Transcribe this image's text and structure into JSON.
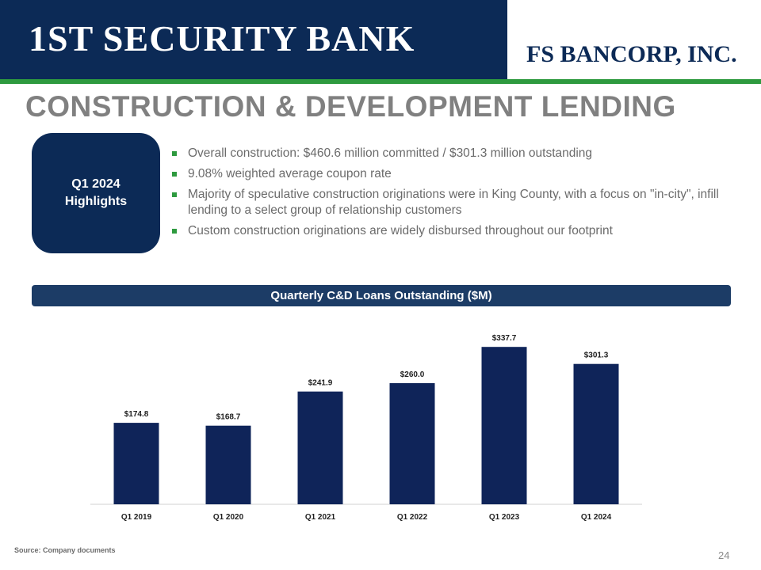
{
  "header": {
    "bank_logo_text": "1ST SECURITY BANK",
    "parent_logo_text": "FS BANCORP, INC."
  },
  "title": "CONSTRUCTION &  DEVELOPMENT LENDING",
  "highlights": {
    "badge": "Q1 2024 Highlights",
    "bullets": [
      "Overall construction: $460.6 million committed / $301.3 million outstanding",
      "9.08% weighted average coupon rate",
      "Majority of speculative construction originations were in King County, with a focus on \"in-city\", infill lending to a select group of  relationship customers",
      "Custom construction originations are widely disbursed throughout our footprint"
    ]
  },
  "chart_banner": "Quarterly C&D Loans Outstanding ($M)",
  "chart_data": {
    "type": "bar",
    "title": "Quarterly C&D Loans Outstanding ($M)",
    "categories": [
      "Q1 2019",
      "Q1 2020",
      "Q1 2021",
      "Q1 2022",
      "Q1 2023",
      "Q1 2024"
    ],
    "values": [
      174.8,
      168.7,
      241.9,
      260.0,
      337.7,
      301.3
    ],
    "data_labels": [
      "$174.8",
      "$168.7",
      "$241.9",
      "$260.0",
      "$337.7",
      "$301.3"
    ],
    "xlabel": "",
    "ylabel": "",
    "ylim": [
      0,
      350
    ],
    "grid": false,
    "bar_color": "#0f2459"
  },
  "footer": {
    "source": "Source: Company documents",
    "page_number": "24"
  },
  "colors": {
    "navy": "#0c2a56",
    "green": "#2e9a3f",
    "gray_title": "#808080"
  }
}
